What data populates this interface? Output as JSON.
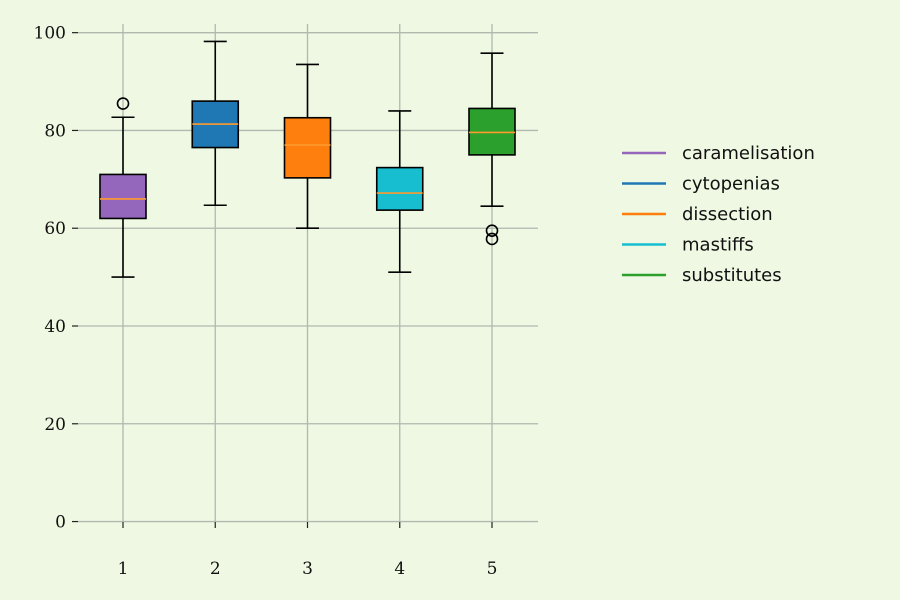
{
  "chart_data": {
    "type": "box",
    "categories": [
      "1",
      "2",
      "3",
      "4",
      "5"
    ],
    "ylim": [
      -5,
      103
    ],
    "yticks": [
      0,
      20,
      40,
      60,
      80,
      100
    ],
    "grid": true,
    "legend_position": "right",
    "series": [
      {
        "name": "caramelisation",
        "color": "#9467bd",
        "whisker_low": 50,
        "q1": 62,
        "median": 66,
        "q3": 71,
        "whisker_high": 82.7,
        "outliers": [
          85.5
        ]
      },
      {
        "name": "cytopenias",
        "color": "#1f77b4",
        "whisker_low": 64.7,
        "q1": 76.5,
        "median": 81.3,
        "q3": 86,
        "whisker_high": 98.2,
        "outliers": []
      },
      {
        "name": "dissection",
        "color": "#ff7f0e",
        "whisker_low": 60,
        "q1": 70.3,
        "median": 77,
        "q3": 82.6,
        "whisker_high": 93.5,
        "outliers": []
      },
      {
        "name": "mastiffs",
        "color": "#17becf",
        "whisker_low": 51,
        "q1": 63.7,
        "median": 67.2,
        "q3": 72.4,
        "whisker_high": 84,
        "outliers": []
      },
      {
        "name": "substitutes",
        "color": "#2ca02c",
        "whisker_low": 64.5,
        "q1": 75,
        "median": 79.6,
        "q3": 84.5,
        "whisker_high": 95.8,
        "outliers": [
          59.5,
          57.8
        ]
      }
    ]
  }
}
